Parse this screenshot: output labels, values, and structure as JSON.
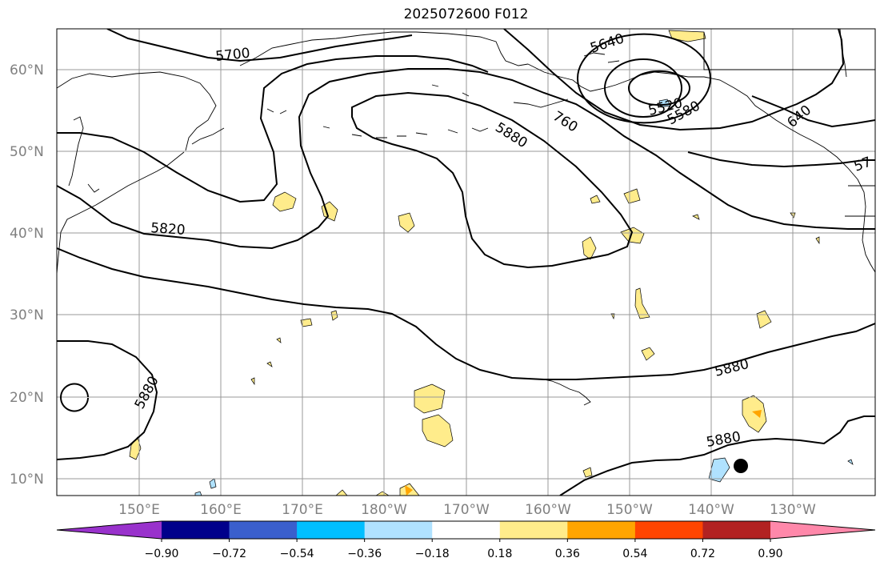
{
  "title": "2025072600 F012",
  "map": {
    "lon_labels": [
      "150°E",
      "160°E",
      "170°E",
      "180°W",
      "170°W",
      "160°W",
      "150°W",
      "140°W",
      "130°W"
    ],
    "lat_labels": [
      "60°N",
      "50°N",
      "40°N",
      "30°N",
      "20°N",
      "10°N"
    ],
    "contour_labels": [
      "5700",
      "5640",
      "5520",
      "5580",
      "640",
      "5880",
      "760",
      "5820",
      "5880",
      "5880",
      "5880",
      "57"
    ]
  },
  "colorbar": {
    "tick_labels": [
      "−0.90",
      "−0.72",
      "−0.54",
      "−0.36",
      "−0.18",
      "0.18",
      "0.36",
      "0.54",
      "0.72",
      "0.90"
    ],
    "bins": [
      {
        "color": "#9932CC",
        "range": "< -0.90"
      },
      {
        "color": "#00008B",
        "range": "-0.90 to -0.72"
      },
      {
        "color": "#3A5FCD",
        "range": "-0.72 to -0.54"
      },
      {
        "color": "#00BFFF",
        "range": "-0.54 to -0.36"
      },
      {
        "color": "#B0E2FF",
        "range": "-0.36 to -0.18"
      },
      {
        "color": "#FFFFFF",
        "range": "-0.18 to 0.18"
      },
      {
        "color": "#FFEC8B",
        "range": "0.18 to 0.36"
      },
      {
        "color": "#FFA500",
        "range": "0.36 to 0.54"
      },
      {
        "color": "#FF4500",
        "range": "0.54 to 0.72"
      },
      {
        "color": "#B22222",
        "range": "0.72 to 0.90"
      },
      {
        "color": "#FF88AA",
        "range": "> 0.90"
      }
    ]
  },
  "colors": {
    "contour": "#000000",
    "grid": "#999999",
    "coast": "#000000",
    "positive_light": "#FFEC8B",
    "positive_mid": "#FFA500",
    "negative_light": "#B0E2FF",
    "storm_marker": "#000000"
  }
}
